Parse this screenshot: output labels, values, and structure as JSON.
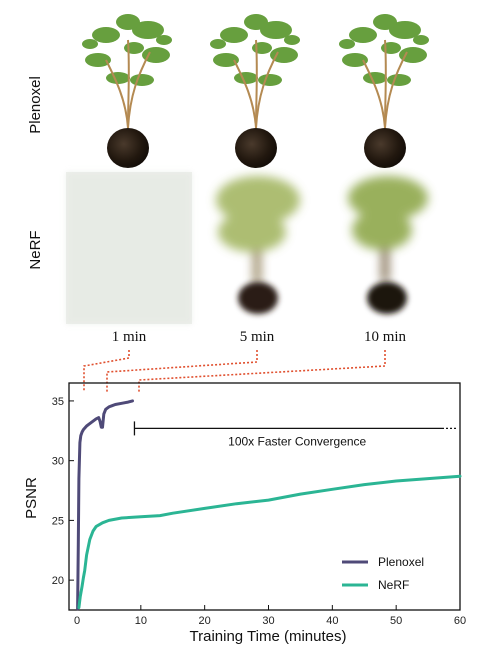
{
  "figure": {
    "row_labels": [
      "Plenoxel",
      "NeRF"
    ],
    "time_labels": [
      "1 min",
      "5 min",
      "10 min"
    ]
  },
  "colors": {
    "plenoxel": "#4f4a78",
    "nerf": "#2bb594",
    "connector": "#e0502f",
    "pot": "#241a14",
    "foliage": "#5f9a34",
    "blur_foliage": "#9fb25a"
  },
  "chart_data": {
    "type": "line",
    "xlabel": "Training Time (minutes)",
    "ylabel": "PSNR",
    "xlim": [
      0,
      60
    ],
    "ylim": [
      17.5,
      36.5
    ],
    "xticks": [
      0,
      10,
      20,
      30,
      40,
      50,
      60
    ],
    "yticks": [
      20,
      25,
      30,
      35
    ],
    "grid": false,
    "legend_position": "bottom-right",
    "series": [
      {
        "name": "Plenoxel",
        "color": "#4f4a78",
        "x": [
          0.1,
          0.2,
          0.3,
          0.45,
          0.6,
          0.8,
          1.0,
          1.5,
          2.0,
          2.5,
          3.0,
          3.4,
          3.6,
          3.8,
          4.0,
          4.2,
          4.5,
          5.0,
          5.5,
          6.0,
          7.0,
          8.0,
          8.7
        ],
        "y": [
          17.6,
          23.0,
          28.5,
          31.5,
          32.1,
          32.4,
          32.6,
          32.9,
          33.1,
          33.3,
          33.5,
          33.6,
          33.3,
          32.8,
          32.8,
          33.9,
          34.3,
          34.5,
          34.6,
          34.7,
          34.8,
          34.9,
          35.0
        ]
      },
      {
        "name": "NeRF",
        "color": "#2bb594",
        "x": [
          0.3,
          0.5,
          0.8,
          1.0,
          1.2,
          1.5,
          2.0,
          2.5,
          3.0,
          4.0,
          5.0,
          7.0,
          10.0,
          13.0,
          15.0,
          20.0,
          25.0,
          30.0,
          35.0,
          40.0,
          45.0,
          50.0,
          55.0,
          60.0
        ],
        "y": [
          17.7,
          18.6,
          19.5,
          20.2,
          20.8,
          22.1,
          23.4,
          24.1,
          24.5,
          24.8,
          25.0,
          25.2,
          25.3,
          25.4,
          25.6,
          26.0,
          26.4,
          26.7,
          27.2,
          27.6,
          28.0,
          28.3,
          28.5,
          28.7
        ]
      }
    ],
    "annotations": [
      {
        "text": "100x Faster Convergence",
        "from_x": 9.0,
        "to_x": 60.0,
        "y": 32.7
      }
    ]
  }
}
